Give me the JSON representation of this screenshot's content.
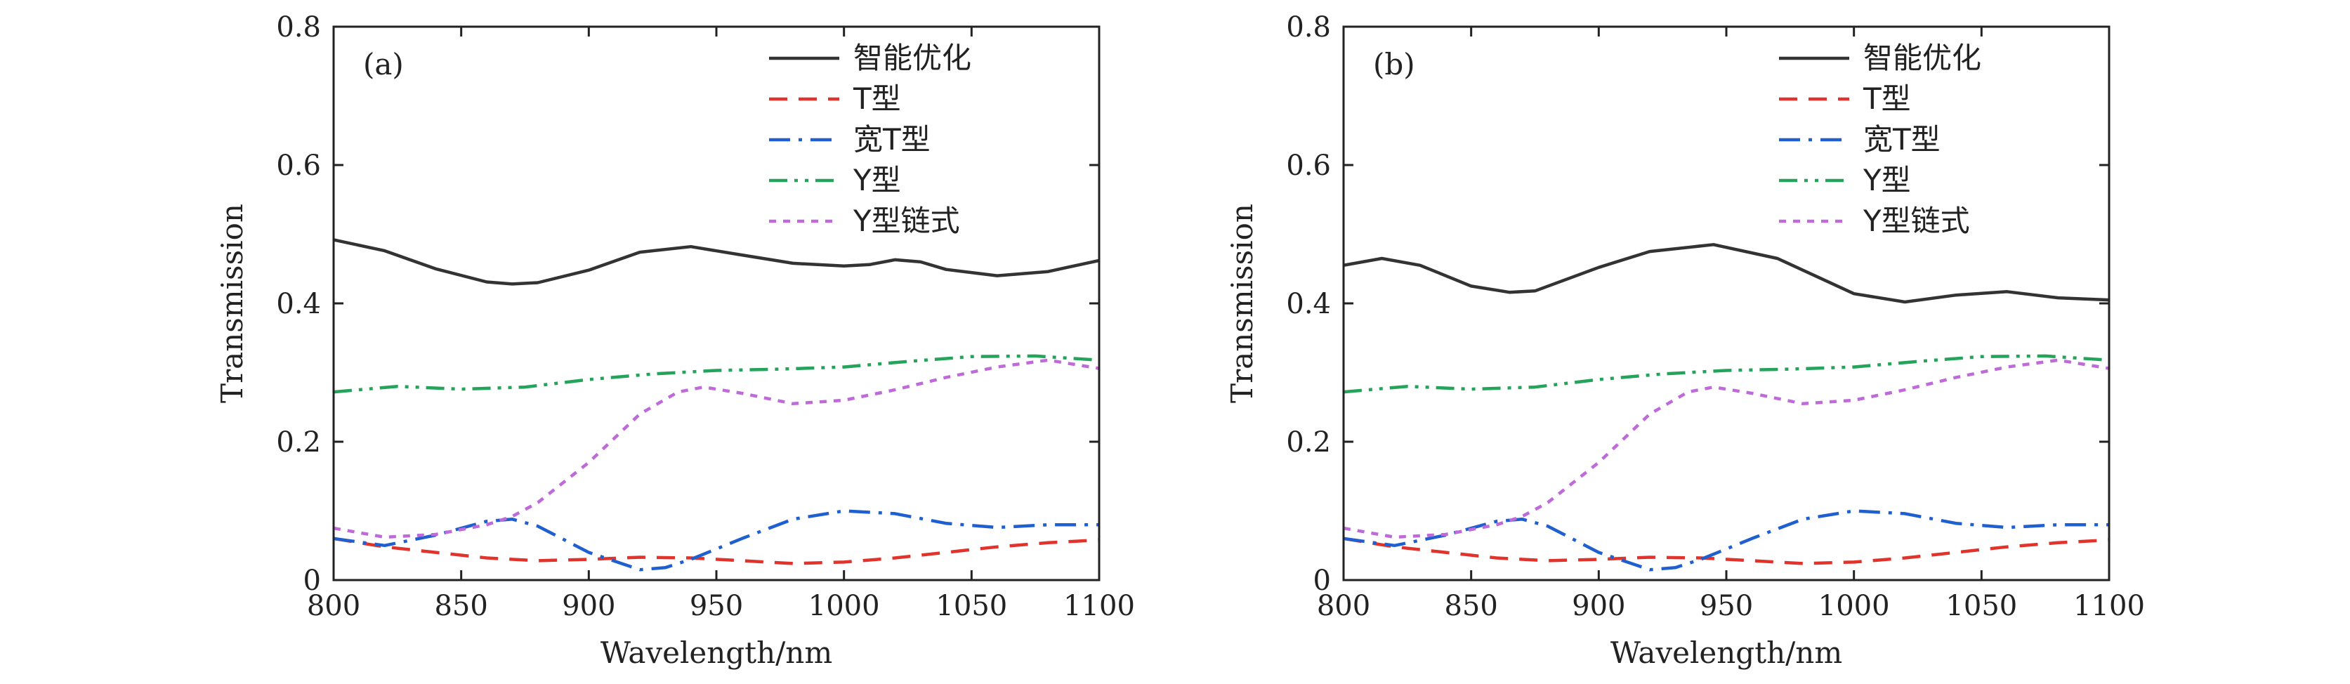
{
  "chart_data": [
    {
      "type": "line",
      "panel_label": "(a)",
      "xlabel": "Wavelength/nm",
      "ylabel": "Transmission",
      "xlim": [
        800,
        1100
      ],
      "ylim": [
        0,
        0.8
      ],
      "xticks": [
        800,
        850,
        900,
        950,
        1000,
        1050,
        1100
      ],
      "yticks": [
        0,
        0.2,
        0.4,
        0.6,
        0.8
      ],
      "ytick_labels": [
        "0",
        "0.2",
        "0.4",
        "0.6",
        "0.8"
      ],
      "legend_position": "top-right",
      "grid": false,
      "series": [
        {
          "name": "智能优化",
          "color": "#333333",
          "style": "solid",
          "x": [
            800,
            820,
            840,
            860,
            870,
            880,
            900,
            920,
            940,
            960,
            980,
            1000,
            1010,
            1020,
            1030,
            1040,
            1060,
            1080,
            1100
          ],
          "y": [
            0.492,
            0.476,
            0.45,
            0.431,
            0.428,
            0.43,
            0.448,
            0.474,
            0.482,
            0.47,
            0.458,
            0.454,
            0.456,
            0.463,
            0.46,
            0.449,
            0.44,
            0.446,
            0.462
          ]
        },
        {
          "name": "T型",
          "color": "#e0332c",
          "style": "dash",
          "x": [
            800,
            820,
            840,
            860,
            880,
            900,
            920,
            940,
            960,
            980,
            1000,
            1020,
            1040,
            1060,
            1080,
            1100
          ],
          "y": [
            0.06,
            0.048,
            0.04,
            0.032,
            0.028,
            0.03,
            0.033,
            0.032,
            0.028,
            0.024,
            0.026,
            0.032,
            0.04,
            0.048,
            0.054,
            0.058
          ]
        },
        {
          "name": "宽T型",
          "color": "#1f5fcf",
          "style": "dashdot",
          "x": [
            800,
            820,
            840,
            860,
            870,
            880,
            900,
            920,
            930,
            940,
            960,
            980,
            1000,
            1020,
            1040,
            1060,
            1080,
            1100
          ],
          "y": [
            0.06,
            0.05,
            0.065,
            0.085,
            0.088,
            0.078,
            0.04,
            0.015,
            0.018,
            0.03,
            0.06,
            0.088,
            0.1,
            0.096,
            0.082,
            0.076,
            0.08,
            0.08
          ]
        },
        {
          "name": "Y型",
          "color": "#24a35a",
          "style": "dashdotdot",
          "x": [
            800,
            825,
            850,
            875,
            900,
            925,
            950,
            975,
            1000,
            1025,
            1050,
            1075,
            1100
          ],
          "y": [
            0.272,
            0.28,
            0.276,
            0.279,
            0.29,
            0.298,
            0.303,
            0.305,
            0.308,
            0.316,
            0.323,
            0.324,
            0.318
          ]
        },
        {
          "name": "Y型链式",
          "color": "#bf6ad9",
          "style": "dot",
          "x": [
            800,
            820,
            840,
            860,
            870,
            880,
            900,
            920,
            935,
            945,
            960,
            980,
            1000,
            1020,
            1040,
            1060,
            1080,
            1100
          ],
          "y": [
            0.075,
            0.062,
            0.066,
            0.08,
            0.092,
            0.112,
            0.17,
            0.24,
            0.272,
            0.279,
            0.27,
            0.255,
            0.26,
            0.275,
            0.293,
            0.308,
            0.318,
            0.306
          ]
        }
      ]
    },
    {
      "type": "line",
      "panel_label": "(b)",
      "xlabel": "Wavelength/nm",
      "ylabel": "Transmission",
      "xlim": [
        800,
        1100
      ],
      "ylim": [
        0,
        0.8
      ],
      "xticks": [
        800,
        850,
        900,
        950,
        1000,
        1050,
        1100
      ],
      "yticks": [
        0,
        0.2,
        0.4,
        0.6,
        0.8
      ],
      "ytick_labels": [
        "0",
        "0.2",
        "0.4",
        "0.6",
        "0.8"
      ],
      "legend_position": "top-right",
      "grid": false,
      "series": [
        {
          "name": "智能优化",
          "color": "#333333",
          "style": "solid",
          "x": [
            800,
            815,
            830,
            850,
            865,
            875,
            900,
            920,
            945,
            970,
            1000,
            1020,
            1040,
            1060,
            1080,
            1100
          ],
          "y": [
            0.455,
            0.465,
            0.455,
            0.425,
            0.416,
            0.418,
            0.452,
            0.475,
            0.485,
            0.465,
            0.414,
            0.402,
            0.412,
            0.417,
            0.408,
            0.405
          ]
        },
        {
          "name": "T型",
          "color": "#e0332c",
          "style": "dash",
          "x": [
            800,
            820,
            840,
            860,
            880,
            900,
            920,
            940,
            960,
            980,
            1000,
            1020,
            1040,
            1060,
            1080,
            1100
          ],
          "y": [
            0.06,
            0.048,
            0.04,
            0.032,
            0.028,
            0.03,
            0.033,
            0.032,
            0.028,
            0.024,
            0.026,
            0.032,
            0.04,
            0.048,
            0.054,
            0.058
          ]
        },
        {
          "name": "宽T型",
          "color": "#1f5fcf",
          "style": "dashdot",
          "x": [
            800,
            820,
            840,
            860,
            870,
            880,
            900,
            920,
            930,
            940,
            960,
            980,
            1000,
            1020,
            1040,
            1060,
            1080,
            1100
          ],
          "y": [
            0.06,
            0.05,
            0.065,
            0.085,
            0.088,
            0.078,
            0.04,
            0.015,
            0.018,
            0.03,
            0.06,
            0.088,
            0.1,
            0.096,
            0.082,
            0.076,
            0.08,
            0.08
          ]
        },
        {
          "name": "Y型",
          "color": "#24a35a",
          "style": "dashdotdot",
          "x": [
            800,
            825,
            850,
            875,
            900,
            925,
            950,
            975,
            1000,
            1025,
            1050,
            1075,
            1100
          ],
          "y": [
            0.272,
            0.28,
            0.276,
            0.279,
            0.29,
            0.298,
            0.303,
            0.305,
            0.308,
            0.316,
            0.323,
            0.324,
            0.318
          ]
        },
        {
          "name": "Y型链式",
          "color": "#bf6ad9",
          "style": "dot",
          "x": [
            800,
            820,
            840,
            860,
            870,
            880,
            900,
            920,
            935,
            945,
            960,
            980,
            1000,
            1020,
            1040,
            1060,
            1080,
            1100
          ],
          "y": [
            0.075,
            0.062,
            0.066,
            0.08,
            0.092,
            0.112,
            0.17,
            0.24,
            0.272,
            0.279,
            0.27,
            0.255,
            0.26,
            0.275,
            0.293,
            0.308,
            0.318,
            0.306
          ]
        }
      ]
    }
  ]
}
